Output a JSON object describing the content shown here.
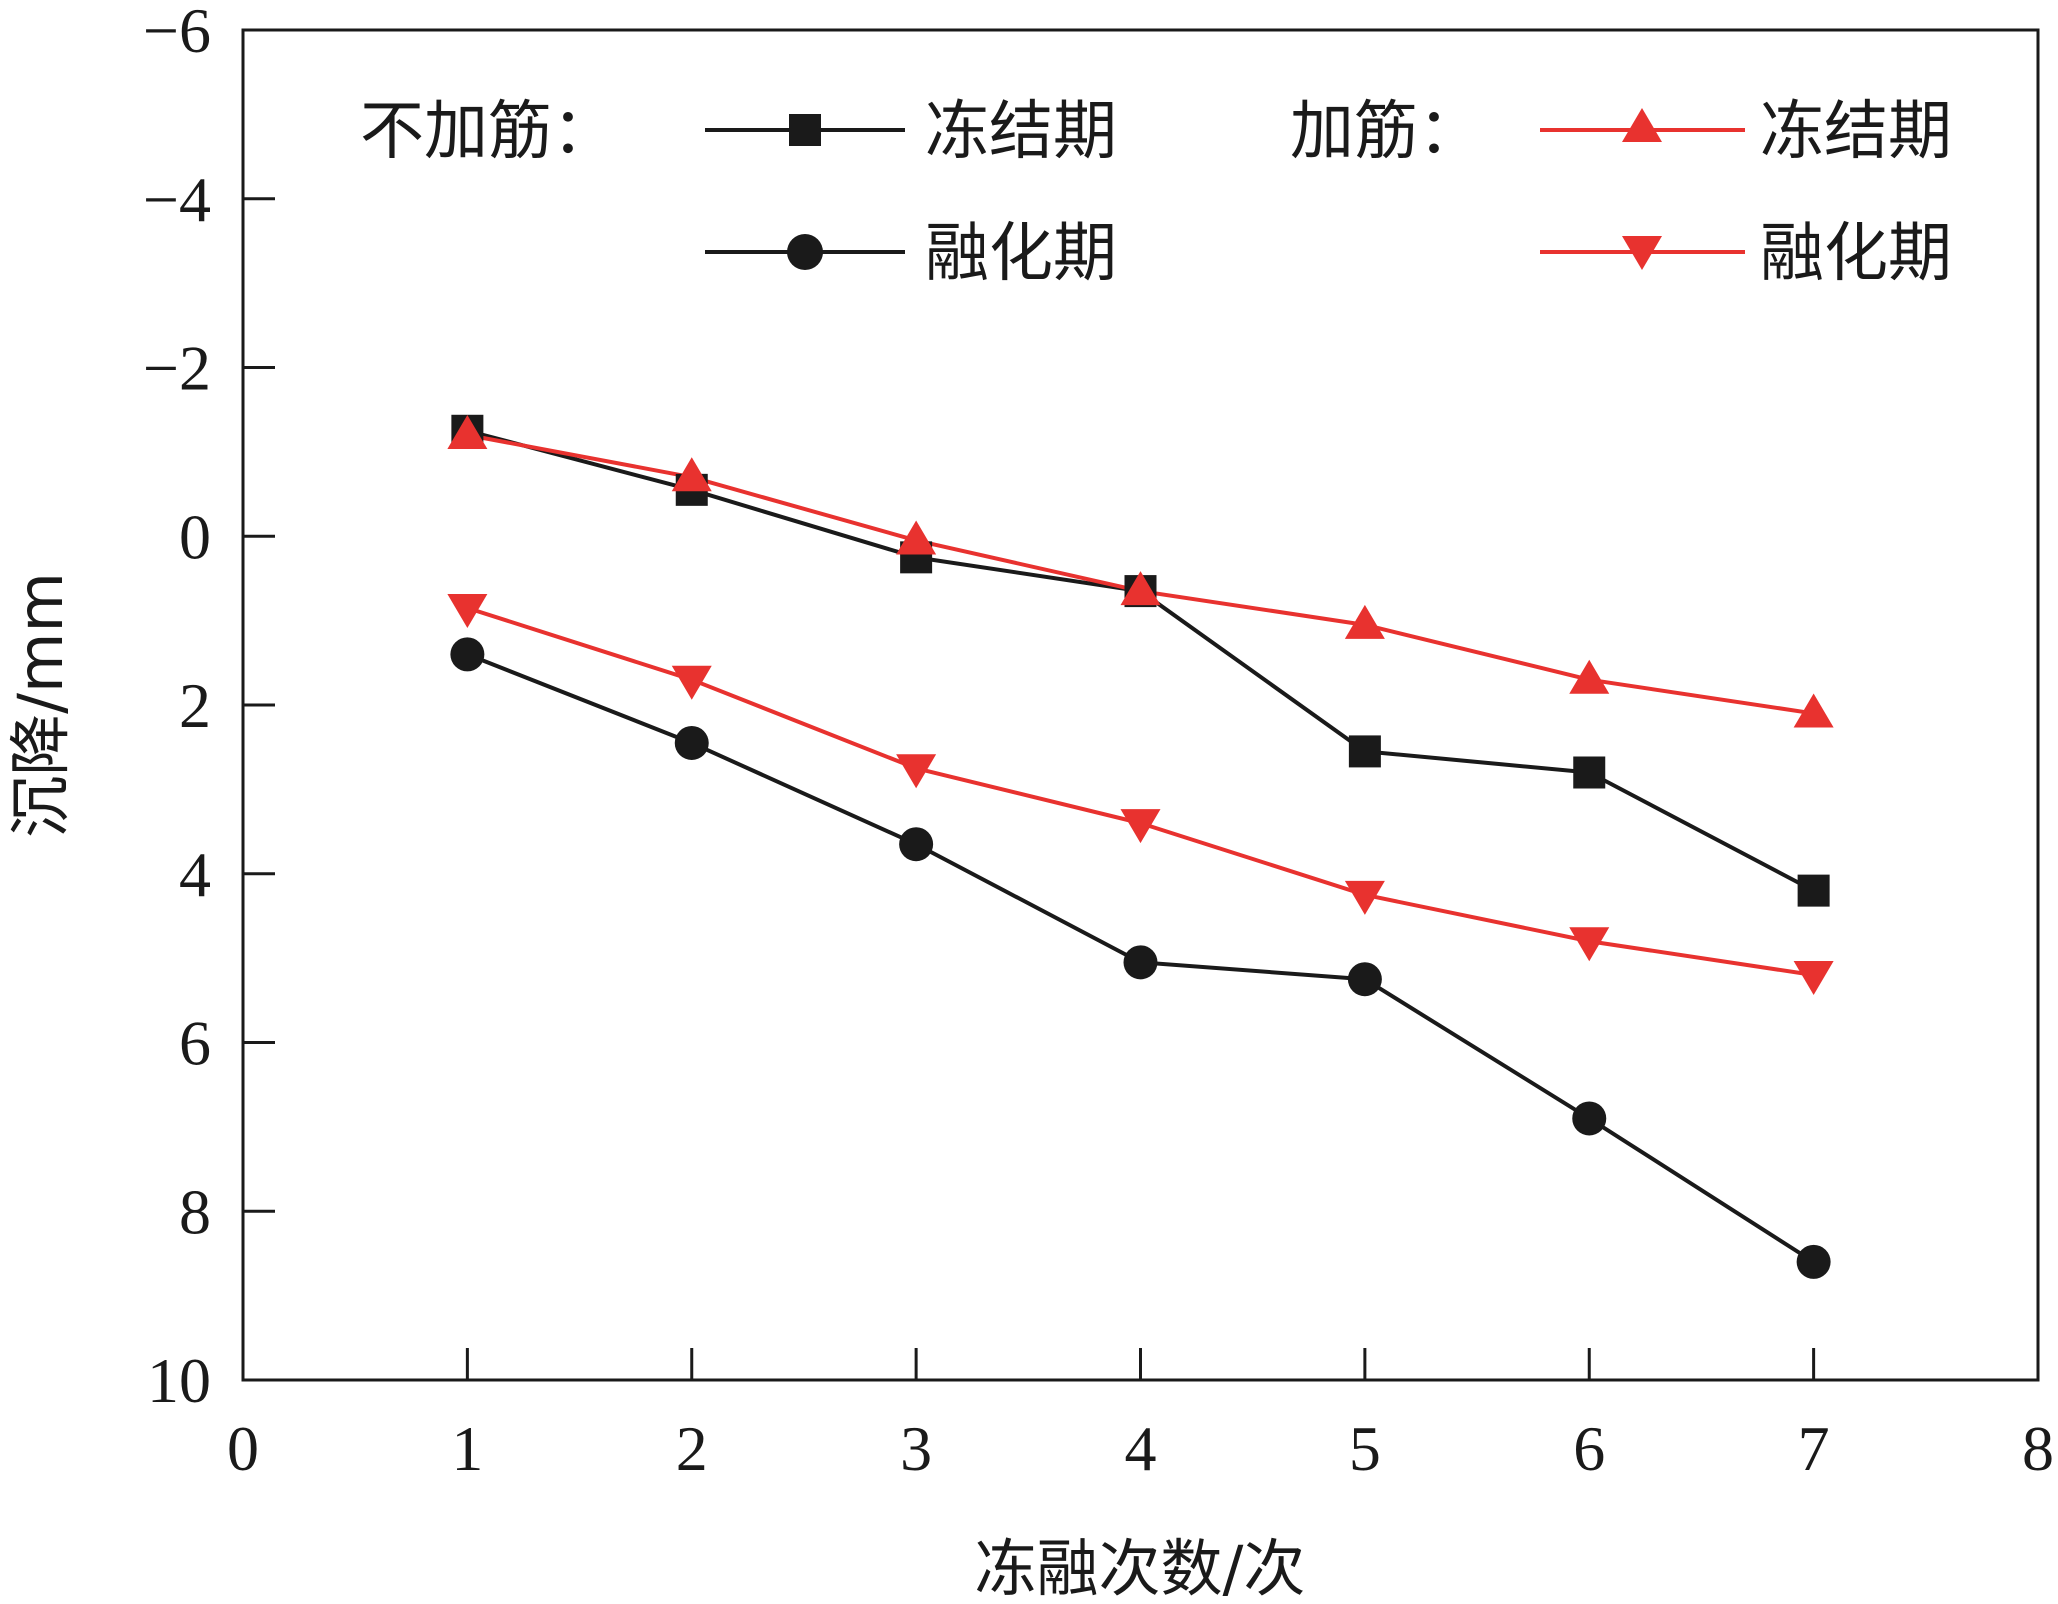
{
  "chart_data": {
    "type": "line",
    "title": "",
    "xlabel": "冻融次数/次",
    "ylabel": "沉降/mm",
    "xlim": [
      0,
      8
    ],
    "ylim": [
      -6,
      10
    ],
    "y_inverted": true,
    "x_ticks": [
      0,
      1,
      2,
      3,
      4,
      5,
      6,
      7,
      8
    ],
    "y_ticks": [
      -6,
      -4,
      -2,
      0,
      2,
      4,
      6,
      8,
      10
    ],
    "y_tick_labels": [
      "−6",
      "−4",
      "−2",
      "0",
      "2",
      "4",
      "6",
      "8",
      "10"
    ],
    "grid": false,
    "legend": {
      "placement": "top",
      "group_unreinforced": "不加筋：",
      "group_reinforced": "加筋："
    },
    "series": [
      {
        "name": "冻结期",
        "group": "不加筋",
        "color": "#1a1a1a",
        "marker": "square",
        "x": [
          1,
          2,
          3,
          4,
          5,
          6,
          7
        ],
        "y": [
          -1.25,
          -0.55,
          0.25,
          0.65,
          2.55,
          2.8,
          4.2
        ]
      },
      {
        "name": "融化期",
        "group": "不加筋",
        "color": "#1a1a1a",
        "marker": "circle",
        "x": [
          1,
          2,
          3,
          4,
          5,
          6,
          7
        ],
        "y": [
          1.4,
          2.45,
          3.65,
          5.05,
          5.25,
          6.9,
          8.6
        ]
      },
      {
        "name": "冻结期",
        "group": "加筋",
        "color": "#e8322f",
        "marker": "triangle-up",
        "x": [
          1,
          2,
          3,
          4,
          5,
          6,
          7
        ],
        "y": [
          -1.2,
          -0.7,
          0.05,
          0.65,
          1.05,
          1.7,
          2.1
        ]
      },
      {
        "name": "融化期",
        "group": "加筋",
        "color": "#e8322f",
        "marker": "triangle-down",
        "x": [
          1,
          2,
          3,
          4,
          5,
          6,
          7
        ],
        "y": [
          0.85,
          1.7,
          2.75,
          3.4,
          4.25,
          4.8,
          5.2
        ]
      }
    ]
  }
}
